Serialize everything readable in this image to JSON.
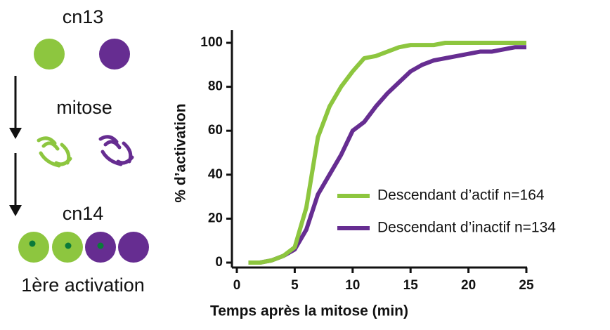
{
  "diagram": {
    "stage_top": "cn13",
    "step": "mitose",
    "stage_bottom": "cn14",
    "caption": "1ère activation"
  },
  "chart_data": {
    "type": "line",
    "xlabel": "Temps après la mitose (min)",
    "ylabel": "% d’activation",
    "x": [
      1,
      2,
      3,
      4,
      5,
      6,
      7,
      8,
      9,
      10,
      11,
      12,
      13,
      14,
      15,
      16,
      17,
      18,
      19,
      20,
      21,
      22,
      23,
      24,
      25
    ],
    "series": [
      {
        "name": "Descendant d’actif n=164",
        "color": "#8dc63f",
        "values": [
          0,
          0,
          1,
          3,
          7,
          25,
          57,
          71,
          80,
          87,
          93,
          94,
          96,
          98,
          99,
          99,
          99,
          100,
          100,
          100,
          100,
          100,
          100,
          100,
          100
        ]
      },
      {
        "name": "Descendant d’inactif n=134",
        "color": "#662d91",
        "values": [
          0,
          0,
          1,
          3,
          6,
          15,
          31,
          40,
          49,
          60,
          64,
          71,
          77,
          82,
          87,
          90,
          92,
          93,
          94,
          95,
          96,
          96,
          97,
          98,
          98
        ]
      }
    ],
    "xlim": [
      0,
      25
    ],
    "xticks": [
      0,
      5,
      10,
      15,
      20,
      25
    ],
    "ylim": [
      0,
      100
    ],
    "yticks": [
      0,
      20,
      40,
      60,
      80,
      100
    ],
    "legend_position": "lower right",
    "grid": false
  }
}
